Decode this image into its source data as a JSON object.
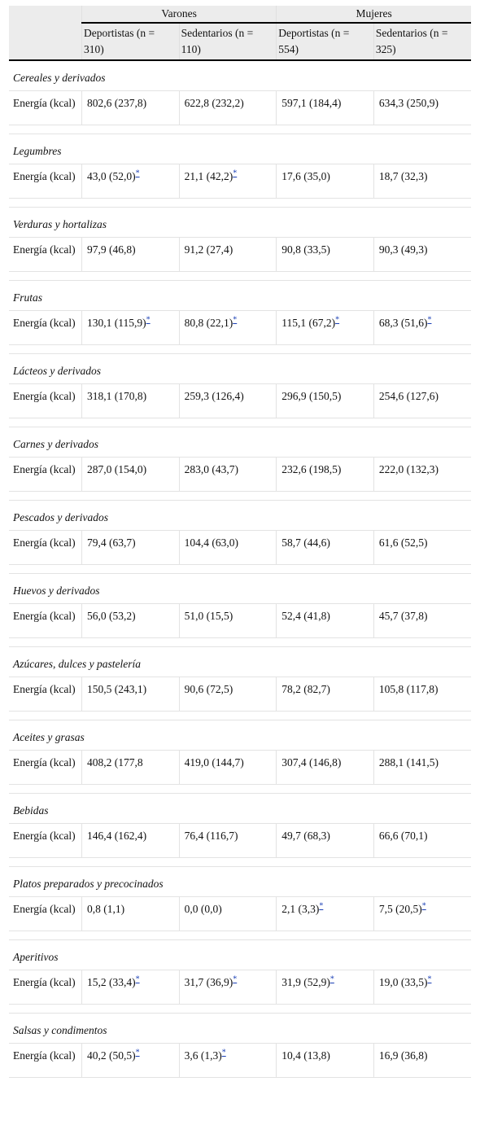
{
  "header": {
    "group_men": "Varones",
    "group_women": "Mujeres",
    "columns": [
      "Deportistas (n = 310)",
      "Sedentarios (n = 110)",
      "Deportistas (n = 554)",
      "Sedentarios (n = 325)"
    ]
  },
  "footnote_mark": "*",
  "row_label": "Energía (kcal)",
  "categories": [
    {
      "name": "Cereales y derivados",
      "values": [
        "802,6 (237,8)",
        "622,8 (232,2)",
        "597,1 (184,4)",
        "634,3 (250,9)"
      ],
      "marks": [
        false,
        false,
        false,
        false
      ]
    },
    {
      "name": "Legumbres",
      "values": [
        "43,0 (52,0)",
        "21,1 (42,2)",
        "17,6 (35,0)",
        "18,7 (32,3)"
      ],
      "marks": [
        true,
        true,
        false,
        false
      ]
    },
    {
      "name": "Verduras y hortalizas",
      "values": [
        "97,9 (46,8)",
        "91,2 (27,4)",
        "90,8 (33,5)",
        "90,3 (49,3)"
      ],
      "marks": [
        false,
        false,
        false,
        false
      ]
    },
    {
      "name": "Frutas",
      "values": [
        "130,1 (115,9)",
        "80,8 (22,1)",
        "115,1 (67,2)",
        "68,3 (51,6)"
      ],
      "marks": [
        true,
        true,
        true,
        true
      ]
    },
    {
      "name": "Lácteos y derivados",
      "values": [
        "318,1 (170,8)",
        "259,3 (126,4)",
        "296,9 (150,5)",
        "254,6 (127,6)"
      ],
      "marks": [
        false,
        false,
        false,
        false
      ]
    },
    {
      "name": "Carnes y derivados",
      "values": [
        "287,0 (154,0)",
        "283,0 (43,7)",
        "232,6 (198,5)",
        "222,0 (132,3)"
      ],
      "marks": [
        false,
        false,
        false,
        false
      ]
    },
    {
      "name": "Pescados y derivados",
      "values": [
        "79,4 (63,7)",
        "104,4 (63,0)",
        "58,7 (44,6)",
        "61,6 (52,5)"
      ],
      "marks": [
        false,
        false,
        false,
        false
      ]
    },
    {
      "name": "Huevos y derivados",
      "values": [
        "56,0 (53,2)",
        "51,0 (15,5)",
        "52,4 (41,8)",
        "45,7 (37,8)"
      ],
      "marks": [
        false,
        false,
        false,
        false
      ]
    },
    {
      "name": "Azúcares, dulces y pastelería",
      "values": [
        "150,5 (243,1)",
        "90,6 (72,5)",
        "78,2 (82,7)",
        "105,8 (117,8)"
      ],
      "marks": [
        false,
        false,
        false,
        false
      ]
    },
    {
      "name": "Aceites y grasas",
      "values": [
        "408,2 (177,8",
        "419,0 (144,7)",
        "307,4 (146,8)",
        "288,1 (141,5)"
      ],
      "marks": [
        false,
        false,
        false,
        false
      ]
    },
    {
      "name": "Bebidas",
      "values": [
        "146,4 (162,4)",
        "76,4 (116,7)",
        "49,7 (68,3)",
        "66,6 (70,1)"
      ],
      "marks": [
        false,
        false,
        false,
        false
      ]
    },
    {
      "name": "Platos preparados y precocinados",
      "values": [
        "0,8 (1,1)",
        "0,0 (0,0)",
        "2,1 (3,3)",
        "7,5 (20,5)"
      ],
      "marks": [
        false,
        false,
        true,
        true
      ]
    },
    {
      "name": "Aperitivos",
      "values": [
        "15,2 (33,4)",
        "31,7 (36,9)",
        "31,9 (52,9)",
        "19,0 (33,5)"
      ],
      "marks": [
        true,
        true,
        true,
        true
      ]
    },
    {
      "name": "Salsas y condimentos",
      "values": [
        "40,2 (50,5)",
        "3,6 (1,3)",
        "10,4 (13,8)",
        "16,9 (36,8)"
      ],
      "marks": [
        true,
        true,
        false,
        false
      ]
    }
  ]
}
